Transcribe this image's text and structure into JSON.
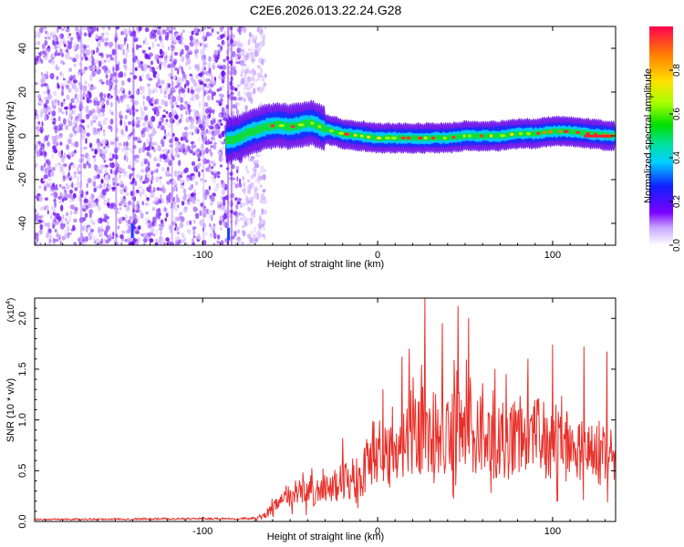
{
  "title": "C2E6.2026.013.22.24.G28",
  "chart_data": [
    {
      "type": "heatmap",
      "title": "C2E6.2026.013.22.24.G28",
      "xlabel": "Height of straight line (km)",
      "ylabel": "Frequency (Hz)",
      "xlim": [
        -196,
        136
      ],
      "ylim": [
        -50,
        50
      ],
      "xticks": [
        -100,
        0,
        100
      ],
      "xtick_labels": [
        "-100",
        "0",
        "100"
      ],
      "yticks": [
        -40,
        -20,
        0,
        20,
        40
      ],
      "ytick_labels": [
        "-40",
        "-20",
        "0",
        "20",
        "40"
      ],
      "noise_region_km": [
        -196,
        -70
      ],
      "signal_ridge": {
        "x": [
          -86,
          -80,
          -72,
          -64,
          -57,
          -50,
          -44,
          -38,
          -30,
          -20,
          -10,
          0,
          10,
          20,
          30,
          40,
          50,
          60,
          70,
          80,
          90,
          100,
          110,
          120,
          136
        ],
        "y": [
          -2,
          -1,
          2,
          4,
          5,
          4,
          5,
          6,
          3,
          1,
          0,
          -1,
          -1,
          -1,
          -1,
          -1,
          0,
          0,
          0,
          1,
          1,
          2,
          2,
          1,
          0
        ]
      },
      "colorbar": {
        "label": "Normalized spectral amplitude",
        "range": [
          0,
          1
        ],
        "ticks": [
          0.0,
          0.2,
          0.4,
          0.6,
          0.8
        ],
        "tick_labels": [
          "0.0",
          "0.2",
          "0.4",
          "0.6",
          "0.8"
        ]
      }
    },
    {
      "type": "line",
      "xlabel": "Height of straight line (km)",
      "ylabel": "SNR (10 * v/v)",
      "y_multiplier": "(x10",
      "y_multiplier_exp": "4",
      "y_multiplier_close": ")",
      "xlim": [
        -196,
        136
      ],
      "ylim": [
        0,
        2.2
      ],
      "xticks": [
        -100,
        0,
        100
      ],
      "xtick_labels": [
        "-100",
        "0",
        "100"
      ],
      "yticks": [
        0.0,
        0.5,
        1.0,
        1.5,
        2.0
      ],
      "ytick_labels": [
        "0.0",
        "0.5",
        "1.0",
        "1.5",
        "2.0"
      ],
      "series_color": "#e8302a",
      "envelope": {
        "x": [
          -196,
          -70,
          -64,
          -60,
          -55,
          -50,
          -40,
          -30,
          -20,
          -10,
          0,
          10,
          20,
          28,
          40,
          50,
          60,
          70,
          80,
          90,
          100,
          110,
          120,
          130,
          136
        ],
        "y": [
          0.02,
          0.03,
          0.08,
          0.15,
          0.22,
          0.28,
          0.32,
          0.36,
          0.45,
          0.55,
          0.65,
          0.75,
          0.95,
          1.05,
          1.0,
          1.0,
          0.95,
          0.9,
          0.95,
          0.95,
          0.9,
          0.85,
          0.8,
          0.75,
          0.8
        ]
      },
      "peaks": [
        {
          "x": 27,
          "y": 2.2
        },
        {
          "x": 37,
          "y": 1.95
        },
        {
          "x": 46,
          "y": 2.12
        },
        {
          "x": 52,
          "y": 2.0
        },
        {
          "x": 18,
          "y": 1.7
        },
        {
          "x": 14,
          "y": 1.62
        },
        {
          "x": 67,
          "y": 1.5
        },
        {
          "x": 100,
          "y": 1.74
        },
        {
          "x": 118,
          "y": 1.72
        },
        {
          "x": 86,
          "y": 1.6
        },
        {
          "x": 131,
          "y": 1.67
        },
        {
          "x": -20,
          "y": 0.82
        },
        {
          "x": 3,
          "y": 1.3
        }
      ]
    }
  ]
}
